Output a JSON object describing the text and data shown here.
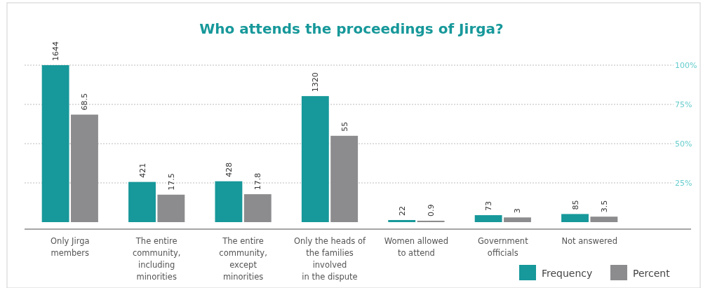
{
  "chart_data": {
    "type": "bar",
    "title": "Who attends the proceedings of Jirga?",
    "categories": [
      "Only Jirga\nmembers",
      "The entire\ncommunity,\nincluding\nminorities",
      "The entire\ncommunity,\nexcept\nminorities",
      "Only the heads of\nthe families\ninvolved\nin the dispute",
      "Women allowed\nto attend",
      "Government\nofficials",
      "Not answered"
    ],
    "series": [
      {
        "name": "Frequency",
        "color": "#17989a",
        "values": [
          1644,
          421,
          428,
          1320,
          22,
          73,
          85
        ]
      },
      {
        "name": "Percent",
        "color": "#8c8c8e",
        "axis": "y2",
        "values": [
          68.5,
          17.5,
          17.8,
          55,
          0.9,
          3,
          3.5
        ]
      }
    ],
    "ylim": [
      0,
      1644
    ],
    "y2lim": [
      0,
      100
    ],
    "y2ticks": [
      {
        "value": 25,
        "label": "25%"
      },
      {
        "value": 50,
        "label": "50%"
      },
      {
        "value": 75,
        "label": "75%"
      },
      {
        "value": 100,
        "label": "100%"
      }
    ],
    "grid": true,
    "legend": "bottom right",
    "data_labels": true
  }
}
